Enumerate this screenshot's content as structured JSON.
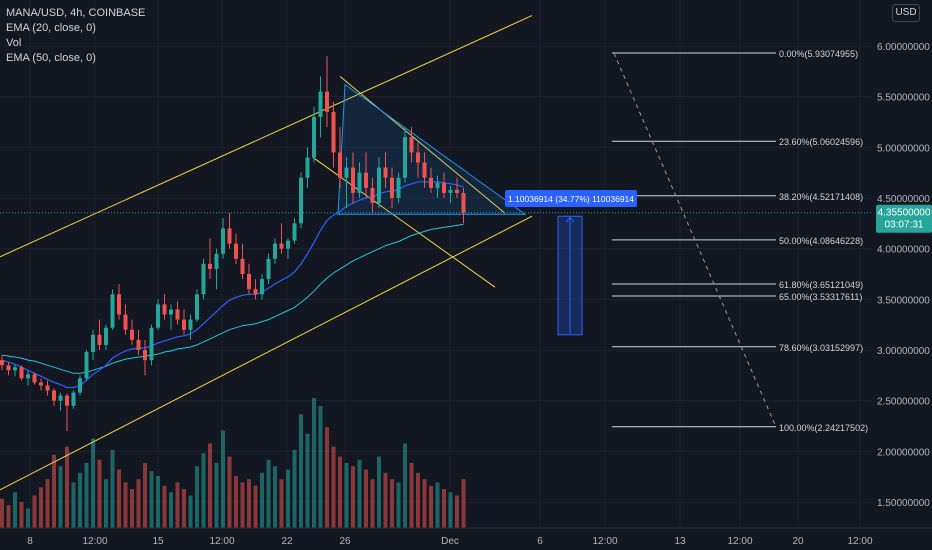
{
  "legend": {
    "symbol": "MANA/USD, 4h, COINBASE",
    "ema20": "EMA (20, close, 0)",
    "vol": "Vol",
    "ema50": "EMA (50, close, 0)"
  },
  "currency_button": "USD",
  "price_axis": {
    "ticks": [
      "6.00000000",
      "5.50000000",
      "5.00000000",
      "4.50000000",
      "4.00000000",
      "3.50000000",
      "3.00000000",
      "2.50000000",
      "2.00000000",
      "1.50000000"
    ],
    "tick_values": [
      6.0,
      5.5,
      5.0,
      4.5,
      4.0,
      3.5,
      3.0,
      2.5,
      2.0,
      1.5
    ]
  },
  "time_axis": {
    "labels": [
      "8",
      "12:00",
      "15",
      "12:00",
      "22",
      "26",
      "Dec",
      "6",
      "12:00",
      "13",
      "12:00",
      "20",
      "12:00"
    ]
  },
  "current_price": {
    "value": "4.35500000",
    "countdown": "03:07:31",
    "price": 4.355
  },
  "measure_label": "1.10036914 (34.77%) 110036914",
  "fib_levels": [
    {
      "label": "0.00%(5.93074955)",
      "price": 5.93074955
    },
    {
      "label": "23.60%(5.06024596)",
      "price": 5.06024596
    },
    {
      "label": "38.20%(4.52171408)",
      "price": 4.52171408
    },
    {
      "label": "50.00%(4.08646228)",
      "price": 4.08646228
    },
    {
      "label": "61.80%(3.65121049)",
      "price": 3.65121049
    },
    {
      "label": "65.00%(3.53317611)",
      "price": 3.53317611
    },
    {
      "label": "78.60%(3.03152997)",
      "price": 3.03152997
    },
    {
      "label": "100.00%(2.24217502)",
      "price": 2.24217502
    }
  ],
  "colors": {
    "background": "#131722",
    "up": "#26a69a",
    "down": "#ef5350",
    "ema20": "#2962ff",
    "ema50": "#26c6da",
    "channel": "#f5d442",
    "triangle": "#2196f3",
    "fib": "#d1d4dc",
    "measure": "#2962ff"
  },
  "chart_data": {
    "type": "candlestick",
    "title": "MANA/USD, 4h, COINBASE",
    "ylim": [
      1.3,
      6.3
    ],
    "candles": [
      {
        "o": 2.9,
        "h": 2.95,
        "l": 2.8,
        "c": 2.85
      },
      {
        "o": 2.85,
        "h": 2.88,
        "l": 2.75,
        "c": 2.8
      },
      {
        "o": 2.8,
        "h": 2.86,
        "l": 2.74,
        "c": 2.83
      },
      {
        "o": 2.83,
        "h": 2.85,
        "l": 2.7,
        "c": 2.72
      },
      {
        "o": 2.72,
        "h": 2.8,
        "l": 2.65,
        "c": 2.76
      },
      {
        "o": 2.76,
        "h": 2.78,
        "l": 2.66,
        "c": 2.68
      },
      {
        "o": 2.68,
        "h": 2.72,
        "l": 2.6,
        "c": 2.65
      },
      {
        "o": 2.65,
        "h": 2.7,
        "l": 2.55,
        "c": 2.6
      },
      {
        "o": 2.6,
        "h": 2.62,
        "l": 2.45,
        "c": 2.5
      },
      {
        "o": 2.5,
        "h": 2.58,
        "l": 2.4,
        "c": 2.55
      },
      {
        "o": 2.55,
        "h": 2.57,
        "l": 2.2,
        "c": 2.45
      },
      {
        "o": 2.45,
        "h": 2.6,
        "l": 2.42,
        "c": 2.58
      },
      {
        "o": 2.58,
        "h": 2.75,
        "l": 2.55,
        "c": 2.72
      },
      {
        "o": 2.72,
        "h": 3.0,
        "l": 2.7,
        "c": 2.98
      },
      {
        "o": 2.98,
        "h": 3.2,
        "l": 2.9,
        "c": 3.15
      },
      {
        "o": 3.15,
        "h": 3.3,
        "l": 3.0,
        "c": 3.05
      },
      {
        "o": 3.05,
        "h": 3.25,
        "l": 3.0,
        "c": 3.22
      },
      {
        "o": 3.22,
        "h": 3.6,
        "l": 3.2,
        "c": 3.55
      },
      {
        "o": 3.55,
        "h": 3.65,
        "l": 3.3,
        "c": 3.35
      },
      {
        "o": 3.35,
        "h": 3.45,
        "l": 3.15,
        "c": 3.2
      },
      {
        "o": 3.2,
        "h": 3.3,
        "l": 3.05,
        "c": 3.1
      },
      {
        "o": 3.1,
        "h": 3.2,
        "l": 2.95,
        "c": 3.0
      },
      {
        "o": 3.0,
        "h": 3.1,
        "l": 2.75,
        "c": 2.9
      },
      {
        "o": 2.9,
        "h": 3.25,
        "l": 2.85,
        "c": 3.22
      },
      {
        "o": 3.22,
        "h": 3.5,
        "l": 3.2,
        "c": 3.45
      },
      {
        "o": 3.45,
        "h": 3.55,
        "l": 3.3,
        "c": 3.35
      },
      {
        "o": 3.35,
        "h": 3.45,
        "l": 3.2,
        "c": 3.4
      },
      {
        "o": 3.4,
        "h": 3.48,
        "l": 3.25,
        "c": 3.3
      },
      {
        "o": 3.3,
        "h": 3.4,
        "l": 3.15,
        "c": 3.2
      },
      {
        "o": 3.2,
        "h": 3.35,
        "l": 3.1,
        "c": 3.3
      },
      {
        "o": 3.3,
        "h": 3.6,
        "l": 3.28,
        "c": 3.55
      },
      {
        "o": 3.55,
        "h": 3.9,
        "l": 3.5,
        "c": 3.85
      },
      {
        "o": 3.85,
        "h": 4.1,
        "l": 3.7,
        "c": 3.8
      },
      {
        "o": 3.8,
        "h": 4.0,
        "l": 3.6,
        "c": 3.95
      },
      {
        "o": 3.95,
        "h": 4.3,
        "l": 3.9,
        "c": 4.2
      },
      {
        "o": 4.2,
        "h": 4.35,
        "l": 4.0,
        "c": 4.05
      },
      {
        "o": 4.05,
        "h": 4.15,
        "l": 3.85,
        "c": 3.9
      },
      {
        "o": 3.9,
        "h": 4.05,
        "l": 3.7,
        "c": 3.75
      },
      {
        "o": 3.75,
        "h": 3.85,
        "l": 3.55,
        "c": 3.6
      },
      {
        "o": 3.6,
        "h": 3.7,
        "l": 3.5,
        "c": 3.55
      },
      {
        "o": 3.55,
        "h": 3.75,
        "l": 3.5,
        "c": 3.7
      },
      {
        "o": 3.7,
        "h": 3.95,
        "l": 3.65,
        "c": 3.9
      },
      {
        "o": 3.9,
        "h": 4.1,
        "l": 3.85,
        "c": 4.05
      },
      {
        "o": 4.05,
        "h": 4.25,
        "l": 3.95,
        "c": 4.0
      },
      {
        "o": 4.0,
        "h": 4.1,
        "l": 3.9,
        "c": 4.08
      },
      {
        "o": 4.08,
        "h": 4.3,
        "l": 4.05,
        "c": 4.25
      },
      {
        "o": 4.25,
        "h": 4.75,
        "l": 4.2,
        "c": 4.7
      },
      {
        "o": 4.7,
        "h": 5.0,
        "l": 4.6,
        "c": 4.9
      },
      {
        "o": 4.9,
        "h": 5.4,
        "l": 4.85,
        "c": 5.3
      },
      {
        "o": 5.3,
        "h": 5.7,
        "l": 5.1,
        "c": 5.55
      },
      {
        "o": 5.55,
        "h": 5.9,
        "l": 5.2,
        "c": 5.35
      },
      {
        "o": 5.35,
        "h": 5.45,
        "l": 4.8,
        "c": 4.95
      },
      {
        "o": 4.95,
        "h": 5.2,
        "l": 4.6,
        "c": 4.7
      },
      {
        "o": 4.7,
        "h": 4.9,
        "l": 4.4,
        "c": 4.8
      },
      {
        "o": 4.8,
        "h": 4.95,
        "l": 4.45,
        "c": 4.55
      },
      {
        "o": 4.55,
        "h": 4.85,
        "l": 4.5,
        "c": 4.75
      },
      {
        "o": 4.75,
        "h": 4.95,
        "l": 4.5,
        "c": 4.6
      },
      {
        "o": 4.6,
        "h": 4.7,
        "l": 4.35,
        "c": 4.45
      },
      {
        "o": 4.45,
        "h": 4.9,
        "l": 4.4,
        "c": 4.8
      },
      {
        "o": 4.8,
        "h": 4.95,
        "l": 4.6,
        "c": 4.7
      },
      {
        "o": 4.7,
        "h": 4.8,
        "l": 4.4,
        "c": 4.5
      },
      {
        "o": 4.5,
        "h": 4.75,
        "l": 4.45,
        "c": 4.7
      },
      {
        "o": 4.7,
        "h": 5.2,
        "l": 4.65,
        "c": 5.1
      },
      {
        "o": 5.1,
        "h": 5.2,
        "l": 4.85,
        "c": 4.95
      },
      {
        "o": 4.95,
        "h": 5.05,
        "l": 4.7,
        "c": 4.85
      },
      {
        "o": 4.85,
        "h": 4.95,
        "l": 4.6,
        "c": 4.7
      },
      {
        "o": 4.7,
        "h": 4.8,
        "l": 4.55,
        "c": 4.6
      },
      {
        "o": 4.6,
        "h": 4.72,
        "l": 4.5,
        "c": 4.65
      },
      {
        "o": 4.65,
        "h": 4.75,
        "l": 4.5,
        "c": 4.55
      },
      {
        "o": 4.55,
        "h": 4.62,
        "l": 4.45,
        "c": 4.58
      },
      {
        "o": 4.58,
        "h": 4.7,
        "l": 4.5,
        "c": 4.55
      },
      {
        "o": 4.55,
        "h": 4.6,
        "l": 4.25,
        "c": 4.355
      }
    ],
    "volume": [
      18,
      14,
      22,
      16,
      12,
      20,
      25,
      30,
      45,
      38,
      50,
      28,
      34,
      40,
      55,
      42,
      30,
      48,
      36,
      28,
      24,
      30,
      40,
      35,
      32,
      26,
      22,
      28,
      24,
      20,
      38,
      46,
      52,
      40,
      60,
      44,
      32,
      28,
      30,
      26,
      34,
      42,
      38,
      30,
      36,
      48,
      70,
      58,
      80,
      75,
      62,
      50,
      44,
      40,
      38,
      42,
      36,
      30,
      44,
      34,
      30,
      28,
      52,
      40,
      34,
      30,
      26,
      28,
      24,
      22,
      20,
      30
    ],
    "ema20": [
      2.9,
      2.88,
      2.86,
      2.83,
      2.8,
      2.77,
      2.74,
      2.71,
      2.68,
      2.66,
      2.63,
      2.63,
      2.65,
      2.7,
      2.76,
      2.8,
      2.85,
      2.92,
      2.96,
      2.99,
      3.01,
      3.02,
      3.02,
      3.04,
      3.07,
      3.09,
      3.11,
      3.13,
      3.14,
      3.16,
      3.2,
      3.26,
      3.32,
      3.38,
      3.44,
      3.49,
      3.52,
      3.54,
      3.55,
      3.55,
      3.57,
      3.61,
      3.65,
      3.69,
      3.72,
      3.77,
      3.85,
      3.95,
      4.06,
      4.18,
      4.28,
      4.33,
      4.37,
      4.42,
      4.45,
      4.48,
      4.5,
      4.51,
      4.54,
      4.56,
      4.57,
      4.58,
      4.62,
      4.64,
      4.66,
      4.66,
      4.66,
      4.66,
      4.65,
      4.64,
      4.63,
      4.61
    ],
    "ema50": [
      2.95,
      2.94,
      2.93,
      2.92,
      2.9,
      2.89,
      2.87,
      2.85,
      2.83,
      2.81,
      2.79,
      2.77,
      2.77,
      2.78,
      2.8,
      2.82,
      2.84,
      2.87,
      2.89,
      2.91,
      2.92,
      2.93,
      2.94,
      2.95,
      2.96,
      2.98,
      2.99,
      3.01,
      3.02,
      3.03,
      3.05,
      3.08,
      3.11,
      3.14,
      3.17,
      3.2,
      3.22,
      3.24,
      3.25,
      3.26,
      3.28,
      3.3,
      3.33,
      3.36,
      3.39,
      3.42,
      3.47,
      3.52,
      3.58,
      3.65,
      3.71,
      3.76,
      3.8,
      3.84,
      3.88,
      3.91,
      3.94,
      3.97,
      4.0,
      4.03,
      4.05,
      4.07,
      4.1,
      4.13,
      4.15,
      4.17,
      4.19,
      4.2,
      4.21,
      4.22,
      4.23,
      4.24
    ]
  }
}
